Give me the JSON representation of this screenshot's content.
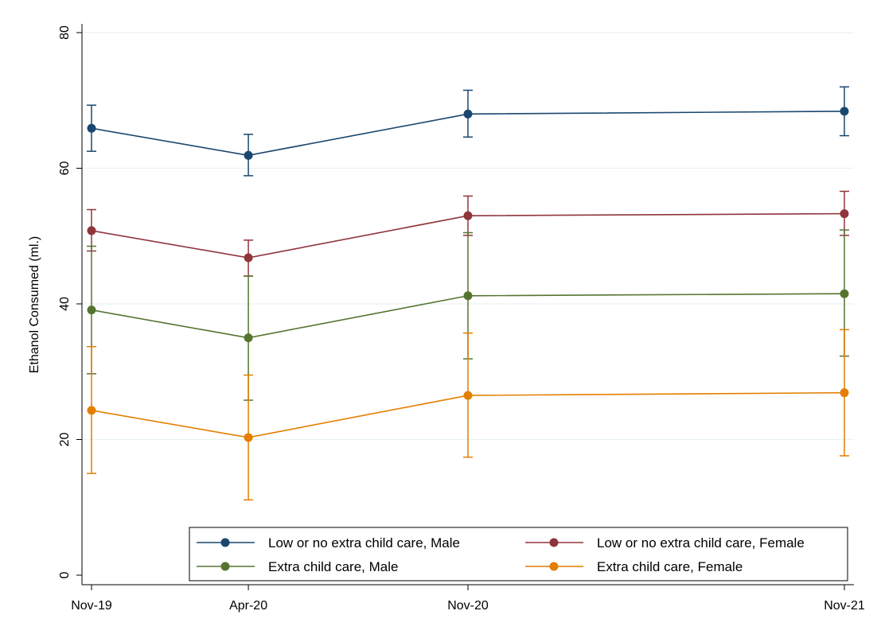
{
  "chart_data": {
    "type": "line",
    "title": "",
    "xlabel": "",
    "ylabel": "Ethanol Consumed (ml.)",
    "x": [
      "Nov-19",
      "Apr-20",
      "Nov-20",
      "Nov-21"
    ],
    "x_positions_months": [
      0,
      5,
      12,
      24
    ],
    "ylim": [
      0,
      80
    ],
    "yticks": [
      0,
      20,
      40,
      60,
      80
    ],
    "grid": true,
    "legend_position": "bottom-right",
    "error_bars": true,
    "series": [
      {
        "name": "Low or no extra child care, Male",
        "color": "#1a476f",
        "values": [
          65.9,
          61.9,
          68.0,
          68.4
        ],
        "lower": [
          62.5,
          58.9,
          64.6,
          64.8
        ],
        "upper": [
          69.3,
          65.0,
          71.5,
          72.0
        ]
      },
      {
        "name": "Low or no extra child care, Female",
        "color": "#90353b",
        "values": [
          50.8,
          46.8,
          53.0,
          53.3
        ],
        "lower": [
          47.8,
          44.1,
          50.1,
          50.1
        ],
        "upper": [
          53.9,
          49.4,
          55.9,
          56.6
        ]
      },
      {
        "name": "Extra child care, Male",
        "color": "#55752f",
        "values": [
          39.1,
          35.0,
          41.2,
          41.5
        ],
        "lower": [
          29.7,
          25.8,
          31.9,
          32.3
        ],
        "upper": [
          48.5,
          44.1,
          50.5,
          50.9
        ]
      },
      {
        "name": "Extra child care, Female",
        "color": "#e37e00",
        "values": [
          24.3,
          20.3,
          26.5,
          26.9
        ],
        "lower": [
          15.0,
          11.1,
          17.4,
          17.6
        ],
        "upper": [
          33.7,
          29.5,
          35.7,
          36.2
        ]
      }
    ]
  }
}
